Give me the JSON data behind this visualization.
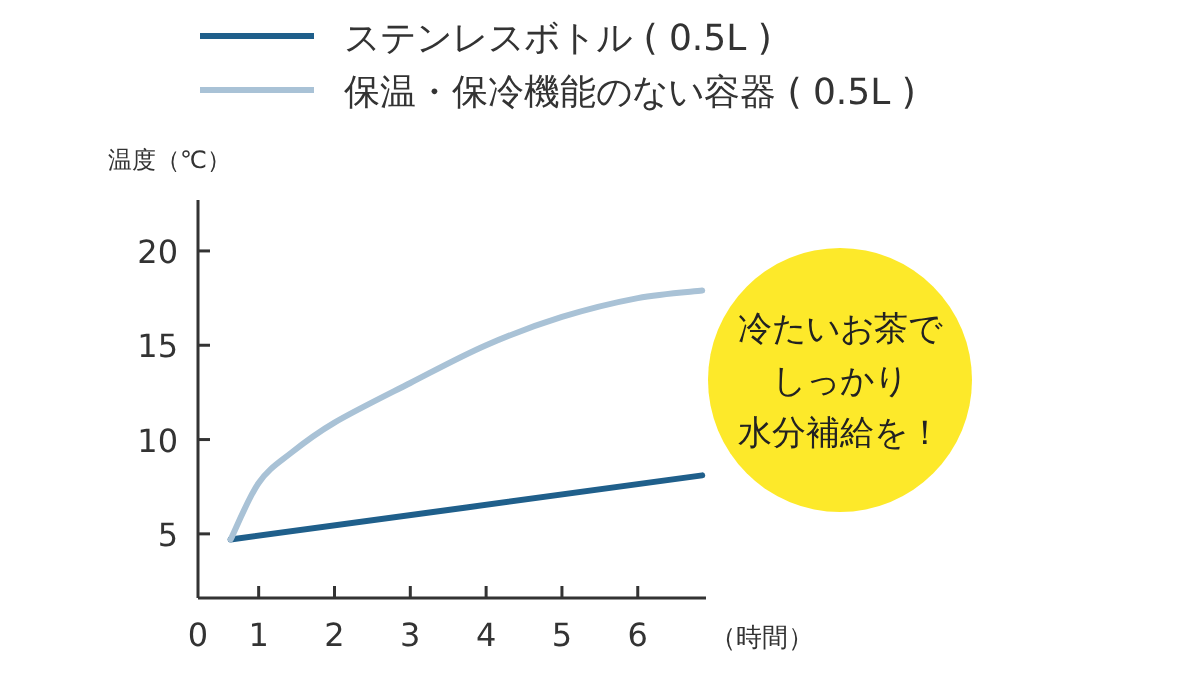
{
  "chart_data": {
    "type": "line",
    "ylabel": "温度（℃）",
    "xlabel": "（時間）",
    "xlim": [
      0.2,
      6.9
    ],
    "xticks": [
      {
        "value": 0.2,
        "label": "0"
      },
      1,
      2,
      3,
      4,
      5,
      6
    ],
    "ylim": [
      1.6,
      22.7
    ],
    "yticks": [
      5,
      10,
      15,
      20
    ],
    "grid": false,
    "legend": "top",
    "marker": "none",
    "line_style": "solid",
    "series": [
      {
        "name": "ステンレスボトル ( 0.5L )",
        "color": "#1f5f8b",
        "x": [
          0.63,
          6.85
        ],
        "values": [
          4.7,
          8.1
        ]
      },
      {
        "name": "保温・保冷機能のない容器 ( 0.5L )",
        "color": "#a9c2d6",
        "x": [
          0.63,
          1.0,
          1.43,
          2,
          3,
          4,
          5,
          6,
          6.85
        ],
        "values": [
          4.7,
          7.7,
          9.3,
          10.9,
          13.0,
          15.0,
          16.5,
          17.5,
          17.9
        ]
      }
    ],
    "annotations": [
      "冷たいお茶で",
      "しっかり",
      "水分補給を！"
    ]
  }
}
